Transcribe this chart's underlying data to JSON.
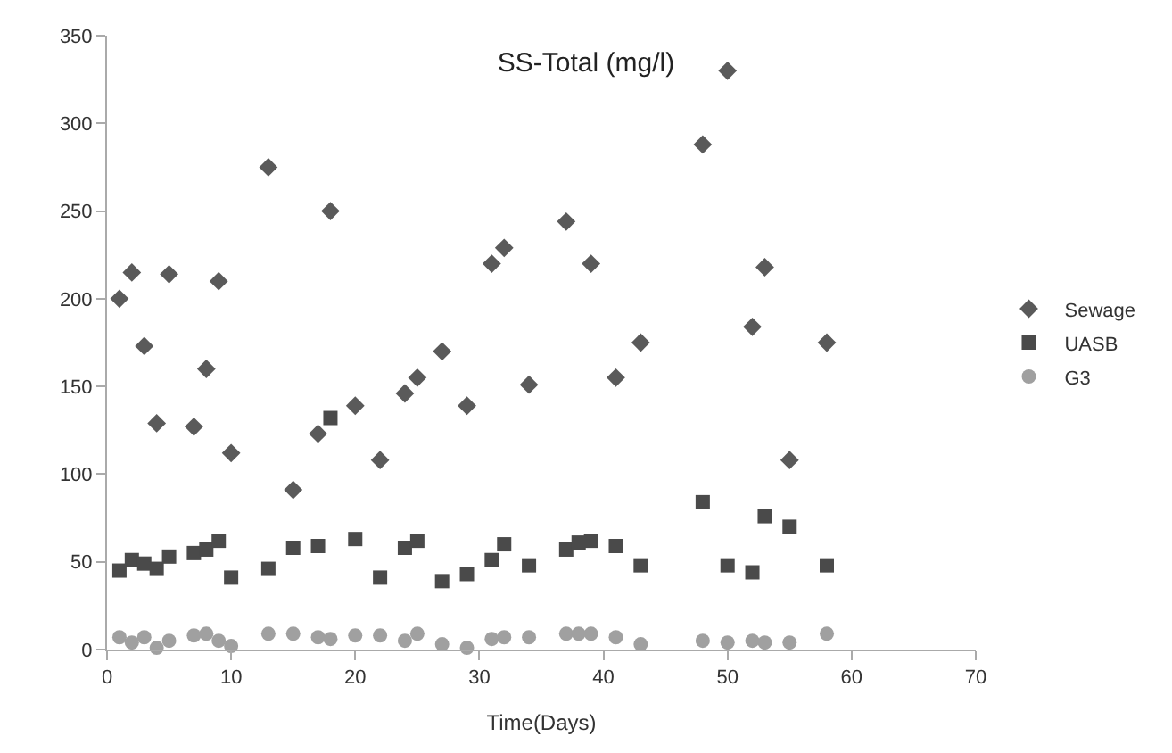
{
  "chart_data": {
    "type": "scatter",
    "title": "SS-Total (mg/l)",
    "xlabel": "Time(Days)",
    "series": [
      {
        "name": "Sewage",
        "color": "#5a5a5a",
        "marker": "diamond",
        "x": [
          1,
          2,
          3,
          4,
          5,
          7,
          8,
          9,
          10,
          13,
          15,
          17,
          18,
          20,
          22,
          24,
          25,
          27,
          29,
          31,
          32,
          34,
          37,
          39,
          41,
          43,
          48,
          50,
          52,
          53,
          55,
          58
        ],
        "values": [
          200,
          215,
          173,
          129,
          214,
          127,
          160,
          210,
          112,
          275,
          91,
          123,
          250,
          139,
          108,
          146,
          155,
          170,
          139,
          220,
          229,
          151,
          244,
          220,
          155,
          175,
          288,
          330,
          184,
          218,
          108,
          175
        ]
      },
      {
        "name": "UASB",
        "color": "#4a4a4a",
        "marker": "square",
        "x": [
          1,
          2,
          3,
          4,
          5,
          7,
          8,
          9,
          10,
          13,
          15,
          17,
          18,
          20,
          22,
          24,
          25,
          27,
          29,
          31,
          32,
          34,
          37,
          38,
          39,
          41,
          43,
          48,
          50,
          52,
          53,
          55,
          58
        ],
        "values": [
          45,
          51,
          49,
          46,
          53,
          55,
          57,
          62,
          41,
          46,
          58,
          59,
          132,
          63,
          41,
          58,
          62,
          39,
          43,
          51,
          60,
          48,
          57,
          61,
          62,
          59,
          48,
          84,
          48,
          44,
          76,
          70,
          48
        ]
      },
      {
        "name": "G3",
        "color": "#a0a0a0",
        "marker": "circle",
        "x": [
          1,
          2,
          3,
          4,
          5,
          7,
          8,
          9,
          10,
          13,
          15,
          17,
          18,
          20,
          22,
          24,
          25,
          27,
          29,
          31,
          32,
          34,
          37,
          38,
          39,
          41,
          43,
          48,
          50,
          52,
          53,
          55,
          58
        ],
        "values": [
          7,
          4,
          7,
          1,
          5,
          8,
          9,
          5,
          2,
          9,
          9,
          7,
          6,
          8,
          8,
          5,
          9,
          3,
          1,
          6,
          7,
          7,
          9,
          9,
          9,
          7,
          3,
          5,
          4,
          5,
          4,
          4,
          9
        ]
      }
    ],
    "xlim": [
      0,
      70
    ],
    "xticks": [
      0,
      10,
      20,
      30,
      40,
      50,
      60,
      70
    ],
    "ylim": [
      0,
      350
    ],
    "yticks": [
      0,
      50,
      100,
      150,
      200,
      250,
      300,
      350
    ],
    "grid": false,
    "legend": "right"
  }
}
